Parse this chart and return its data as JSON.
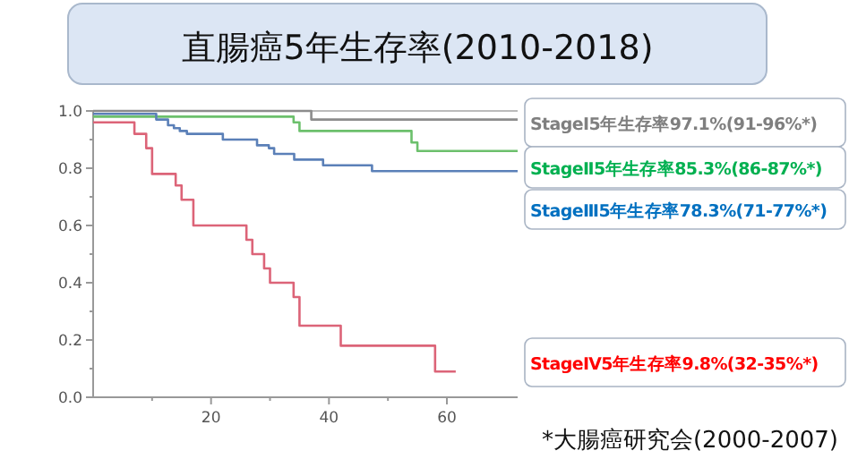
{
  "chart_data": {
    "type": "step",
    "title": "直腸癌5年生存率(2010-2018)",
    "xlim": [
      0,
      72
    ],
    "ylim": [
      0,
      1
    ],
    "xticks": [
      {
        "value": 10,
        "label": null
      },
      {
        "value": 20,
        "label": "20"
      },
      {
        "value": 30,
        "label": null
      },
      {
        "value": 40,
        "label": "40"
      },
      {
        "value": 50,
        "label": null
      },
      {
        "value": 60,
        "label": "60"
      }
    ],
    "yticks": [
      {
        "value": 0,
        "label": "0.0"
      },
      {
        "value": 0.1,
        "label": null
      },
      {
        "value": 0.2,
        "label": "0.2"
      },
      {
        "value": 0.3,
        "label": null
      },
      {
        "value": 0.4,
        "label": "0.4"
      },
      {
        "value": 0.5,
        "label": null
      },
      {
        "value": 0.6,
        "label": "0.6"
      },
      {
        "value": 0.7,
        "label": null
      },
      {
        "value": 0.8,
        "label": "0.8"
      },
      {
        "value": 0.9,
        "label": null
      },
      {
        "value": 1,
        "label": "1.0"
      }
    ],
    "grid": false,
    "legend": false,
    "series": [
      {
        "name": "StageⅠ5年生存率97.1%(91-96%*)",
        "color": "#8c8c8c",
        "x": [
          0,
          37,
          72
        ],
        "values": [
          1.0,
          0.97,
          0.97
        ]
      },
      {
        "name": "StageⅡ5年生存率85.3%(86-87%*)",
        "color": "#6cc06c",
        "x": [
          0,
          34,
          35,
          54,
          55,
          72
        ],
        "values": [
          0.98,
          0.96,
          0.93,
          0.89,
          0.86,
          0.86
        ]
      },
      {
        "name": "StageⅢ5年生存率78.3%(71-77%*)",
        "color": "#5b80b8",
        "x": [
          0,
          10.7,
          12.7,
          13.7,
          14.7,
          15.9,
          22,
          27.8,
          29.8,
          30.7,
          34.1,
          39,
          47.3,
          72
        ],
        "values": [
          0.99,
          0.97,
          0.95,
          0.94,
          0.93,
          0.92,
          0.9,
          0.88,
          0.87,
          0.85,
          0.83,
          0.81,
          0.79,
          0.79
        ]
      },
      {
        "name": "StageⅣ5年生存率9.8%(32-35%*)",
        "color": "#dc6478",
        "x": [
          0,
          7,
          9,
          10,
          14,
          15,
          17,
          26,
          27,
          29,
          30,
          34,
          35,
          42,
          58,
          61.5
        ],
        "values": [
          0.96,
          0.92,
          0.87,
          0.78,
          0.74,
          0.69,
          0.6,
          0.55,
          0.5,
          0.45,
          0.4,
          0.35,
          0.25,
          0.18,
          0.09,
          0.09
        ]
      }
    ],
    "annotations": [
      "*大腸癌研究会(2000-2007)"
    ]
  }
}
